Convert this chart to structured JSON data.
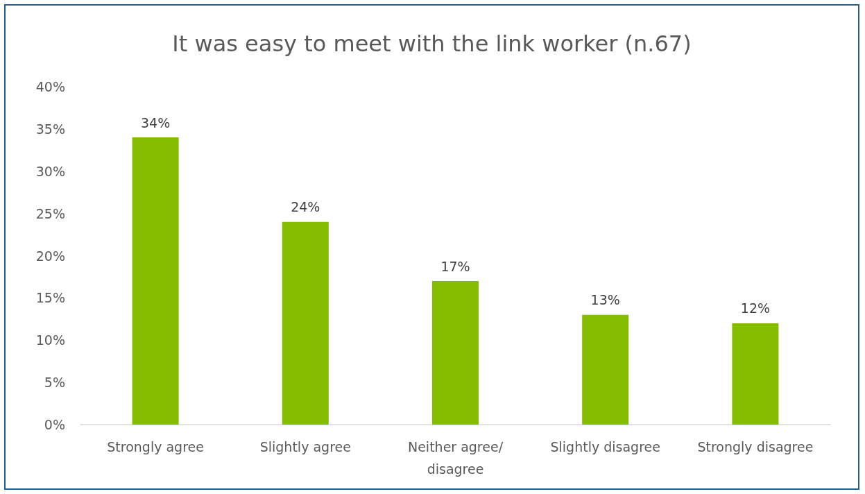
{
  "chart_data": {
    "type": "bar",
    "title": "It was easy to meet with the link worker (n.67)",
    "categories": [
      "Strongly agree",
      "Slightly agree",
      "Neither agree/disagree",
      "Slightly disagree",
      "Strongly disagree"
    ],
    "values": [
      34,
      24,
      17,
      13,
      12
    ],
    "value_labels": [
      "34%",
      "24%",
      "17%",
      "13%",
      "12%"
    ],
    "color": "#84bc00",
    "ylim": [
      0,
      40
    ],
    "yticks": [
      {
        "value": 0,
        "label": "0%"
      },
      {
        "value": 5,
        "label": "5%"
      },
      {
        "value": 10,
        "label": "10%"
      },
      {
        "value": 15,
        "label": "15%"
      },
      {
        "value": 20,
        "label": "20%"
      },
      {
        "value": 25,
        "label": "25%"
      },
      {
        "value": 30,
        "label": "30%"
      },
      {
        "value": 35,
        "label": "35%"
      },
      {
        "value": 40,
        "label": "40%"
      }
    ],
    "grid": false
  }
}
